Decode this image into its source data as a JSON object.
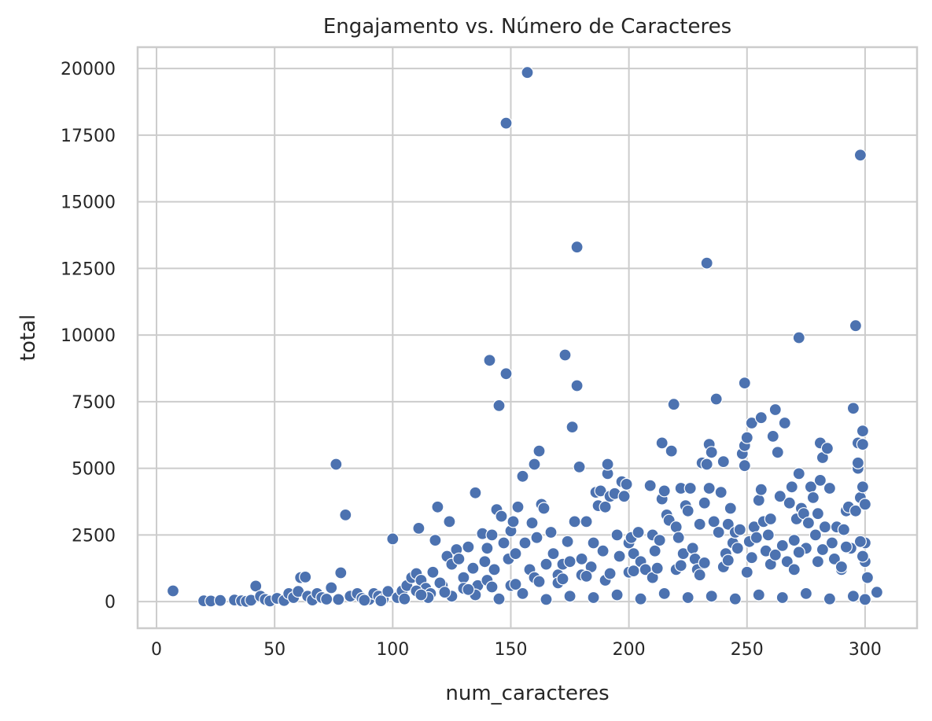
{
  "chart_data": {
    "type": "scatter",
    "title": "Engajamento vs. Número de Caracteres",
    "xlabel": "num_caracteres",
    "ylabel": "total",
    "xlim": [
      -8,
      322
    ],
    "ylim": [
      -1000,
      20800
    ],
    "xticks": [
      0,
      50,
      100,
      150,
      200,
      250,
      300
    ],
    "yticks": [
      0,
      2500,
      5000,
      7500,
      10000,
      12500,
      15000,
      17500,
      20000
    ],
    "grid": true,
    "color": "#4c72b0",
    "series": [
      {
        "points": [
          [
            7,
            400
          ],
          [
            20,
            30
          ],
          [
            23,
            20
          ],
          [
            27,
            40
          ],
          [
            33,
            60
          ],
          [
            36,
            30
          ],
          [
            38,
            10
          ],
          [
            40,
            50
          ],
          [
            42,
            580
          ],
          [
            44,
            200
          ],
          [
            46,
            80
          ],
          [
            48,
            20
          ],
          [
            51,
            120
          ],
          [
            54,
            40
          ],
          [
            56,
            300
          ],
          [
            58,
            150
          ],
          [
            60,
            380
          ],
          [
            61,
            900
          ],
          [
            63,
            920
          ],
          [
            64,
            200
          ],
          [
            66,
            60
          ],
          [
            68,
            300
          ],
          [
            70,
            150
          ],
          [
            72,
            90
          ],
          [
            74,
            520
          ],
          [
            76,
            5150
          ],
          [
            77,
            80
          ],
          [
            78,
            1080
          ],
          [
            80,
            3250
          ],
          [
            82,
            200
          ],
          [
            85,
            300
          ],
          [
            87,
            120
          ],
          [
            90,
            80
          ],
          [
            92,
            300
          ],
          [
            94,
            200
          ],
          [
            96,
            100
          ],
          [
            98,
            380
          ],
          [
            100,
            2350
          ],
          [
            102,
            150
          ],
          [
            104,
            400
          ],
          [
            106,
            600
          ],
          [
            108,
            900
          ],
          [
            110,
            1050
          ],
          [
            111,
            2750
          ],
          [
            112,
            800
          ],
          [
            114,
            500
          ],
          [
            116,
            300
          ],
          [
            117,
            1100
          ],
          [
            118,
            2300
          ],
          [
            119,
            3550
          ],
          [
            121,
            600
          ],
          [
            123,
            1700
          ],
          [
            124,
            3000
          ],
          [
            125,
            1400
          ],
          [
            127,
            1950
          ],
          [
            128,
            1600
          ],
          [
            130,
            900
          ],
          [
            132,
            2050
          ],
          [
            134,
            1250
          ],
          [
            135,
            4080
          ],
          [
            136,
            600
          ],
          [
            138,
            2550
          ],
          [
            139,
            1500
          ],
          [
            140,
            2000
          ],
          [
            141,
            9050
          ],
          [
            142,
            2500
          ],
          [
            143,
            1200
          ],
          [
            144,
            3450
          ],
          [
            145,
            7350
          ],
          [
            146,
            3200
          ],
          [
            147,
            2200
          ],
          [
            148,
            17950
          ],
          [
            148,
            8550
          ],
          [
            149,
            1600
          ],
          [
            150,
            2650
          ],
          [
            151,
            3000
          ],
          [
            152,
            1800
          ],
          [
            153,
            3550
          ],
          [
            155,
            4700
          ],
          [
            156,
            2200
          ],
          [
            157,
            19850
          ],
          [
            158,
            1200
          ],
          [
            159,
            2950
          ],
          [
            160,
            5150
          ],
          [
            161,
            2400
          ],
          [
            162,
            5650
          ],
          [
            163,
            3650
          ],
          [
            164,
            3500
          ],
          [
            165,
            1400
          ],
          [
            167,
            2600
          ],
          [
            168,
            1800
          ],
          [
            170,
            1000
          ],
          [
            172,
            1400
          ],
          [
            173,
            9250
          ],
          [
            174,
            2250
          ],
          [
            175,
            1500
          ],
          [
            176,
            6550
          ],
          [
            177,
            3000
          ],
          [
            178,
            8100
          ],
          [
            178,
            13300
          ],
          [
            179,
            5050
          ],
          [
            180,
            1600
          ],
          [
            182,
            3000
          ],
          [
            184,
            1300
          ],
          [
            185,
            2200
          ],
          [
            186,
            4100
          ],
          [
            187,
            3600
          ],
          [
            188,
            4150
          ],
          [
            189,
            1900
          ],
          [
            190,
            3550
          ],
          [
            191,
            4800
          ],
          [
            191,
            5150
          ],
          [
            192,
            3950
          ],
          [
            194,
            4050
          ],
          [
            195,
            2500
          ],
          [
            196,
            1700
          ],
          [
            197,
            4500
          ],
          [
            198,
            3950
          ],
          [
            199,
            4400
          ],
          [
            200,
            2200
          ],
          [
            201,
            2400
          ],
          [
            202,
            1800
          ],
          [
            204,
            2600
          ],
          [
            205,
            1500
          ],
          [
            207,
            1200
          ],
          [
            209,
            4350
          ],
          [
            210,
            2500
          ],
          [
            211,
            1900
          ],
          [
            213,
            2300
          ],
          [
            214,
            3850
          ],
          [
            214,
            5950
          ],
          [
            215,
            4150
          ],
          [
            216,
            3250
          ],
          [
            217,
            3050
          ],
          [
            218,
            5650
          ],
          [
            219,
            7400
          ],
          [
            220,
            2800
          ],
          [
            221,
            2400
          ],
          [
            222,
            4250
          ],
          [
            223,
            1800
          ],
          [
            224,
            3600
          ],
          [
            225,
            3400
          ],
          [
            226,
            4250
          ],
          [
            227,
            2000
          ],
          [
            228,
            1600
          ],
          [
            229,
            1200
          ],
          [
            230,
            2900
          ],
          [
            231,
            5200
          ],
          [
            232,
            3700
          ],
          [
            233,
            12700
          ],
          [
            233,
            5150
          ],
          [
            234,
            5900
          ],
          [
            234,
            4250
          ],
          [
            235,
            5600
          ],
          [
            236,
            3000
          ],
          [
            237,
            7600
          ],
          [
            238,
            2600
          ],
          [
            239,
            4100
          ],
          [
            240,
            5250
          ],
          [
            241,
            1800
          ],
          [
            242,
            2900
          ],
          [
            243,
            3500
          ],
          [
            244,
            2200
          ],
          [
            245,
            2600
          ],
          [
            246,
            2000
          ],
          [
            247,
            2700
          ],
          [
            248,
            5550
          ],
          [
            249,
            5850
          ],
          [
            249,
            8200
          ],
          [
            249,
            5100
          ],
          [
            250,
            6150
          ],
          [
            251,
            2250
          ],
          [
            252,
            6700
          ],
          [
            253,
            2800
          ],
          [
            254,
            2400
          ],
          [
            255,
            3800
          ],
          [
            256,
            6900
          ],
          [
            256,
            4200
          ],
          [
            257,
            3000
          ],
          [
            258,
            1900
          ],
          [
            259,
            2500
          ],
          [
            260,
            3100
          ],
          [
            261,
            6200
          ],
          [
            262,
            7200
          ],
          [
            263,
            5600
          ],
          [
            264,
            3950
          ],
          [
            265,
            2100
          ],
          [
            266,
            6700
          ],
          [
            267,
            1500
          ],
          [
            268,
            3700
          ],
          [
            269,
            4300
          ],
          [
            270,
            2300
          ],
          [
            271,
            3100
          ],
          [
            272,
            9900
          ],
          [
            272,
            4800
          ],
          [
            273,
            3500
          ],
          [
            274,
            3300
          ],
          [
            275,
            2000
          ],
          [
            276,
            2950
          ],
          [
            277,
            4300
          ],
          [
            278,
            3900
          ],
          [
            279,
            2500
          ],
          [
            280,
            3300
          ],
          [
            281,
            5950
          ],
          [
            281,
            4550
          ],
          [
            282,
            5400
          ],
          [
            283,
            2800
          ],
          [
            284,
            5750
          ],
          [
            285,
            4250
          ],
          [
            286,
            2200
          ],
          [
            287,
            1600
          ],
          [
            288,
            2800
          ],
          [
            290,
            1200
          ],
          [
            291,
            2700
          ],
          [
            292,
            3400
          ],
          [
            293,
            3550
          ],
          [
            294,
            2000
          ],
          [
            295,
            7250
          ],
          [
            296,
            10350
          ],
          [
            296,
            3400
          ],
          [
            297,
            5000
          ],
          [
            297,
            5950
          ],
          [
            297,
            5200
          ],
          [
            298,
            16750
          ],
          [
            298,
            3900
          ],
          [
            299,
            6400
          ],
          [
            299,
            5900
          ],
          [
            299,
            4300
          ],
          [
            300,
            3650
          ],
          [
            300,
            2200
          ],
          [
            300,
            1500
          ],
          [
            301,
            900
          ],
          [
            305,
            350
          ],
          [
            88,
            50
          ],
          [
            95,
            30
          ],
          [
            105,
            100
          ],
          [
            115,
            150
          ],
          [
            125,
            200
          ],
          [
            135,
            250
          ],
          [
            145,
            100
          ],
          [
            155,
            300
          ],
          [
            165,
            80
          ],
          [
            175,
            200
          ],
          [
            185,
            150
          ],
          [
            195,
            250
          ],
          [
            205,
            100
          ],
          [
            215,
            300
          ],
          [
            225,
            150
          ],
          [
            235,
            200
          ],
          [
            245,
            100
          ],
          [
            255,
            250
          ],
          [
            265,
            150
          ],
          [
            275,
            300
          ],
          [
            285,
            100
          ],
          [
            295,
            200
          ],
          [
            300,
            80
          ],
          [
            110,
            400
          ],
          [
            120,
            700
          ],
          [
            130,
            500
          ],
          [
            140,
            800
          ],
          [
            150,
            600
          ],
          [
            160,
            900
          ],
          [
            170,
            700
          ],
          [
            180,
            1000
          ],
          [
            190,
            800
          ],
          [
            200,
            1100
          ],
          [
            210,
            900
          ],
          [
            220,
            1200
          ],
          [
            230,
            1000
          ],
          [
            240,
            1300
          ],
          [
            250,
            1100
          ],
          [
            260,
            1400
          ],
          [
            270,
            1200
          ],
          [
            280,
            1500
          ],
          [
            290,
            1300
          ],
          [
            299,
            1700
          ],
          [
            112,
            250
          ],
          [
            122,
            350
          ],
          [
            132,
            450
          ],
          [
            142,
            550
          ],
          [
            152,
            650
          ],
          [
            162,
            750
          ],
          [
            172,
            850
          ],
          [
            182,
            950
          ],
          [
            192,
            1050
          ],
          [
            202,
            1150
          ],
          [
            212,
            1250
          ],
          [
            222,
            1350
          ],
          [
            232,
            1450
          ],
          [
            242,
            1550
          ],
          [
            252,
            1650
          ],
          [
            262,
            1750
          ],
          [
            272,
            1850
          ],
          [
            282,
            1950
          ],
          [
            292,
            2050
          ],
          [
            298,
            2250
          ]
        ]
      }
    ]
  }
}
